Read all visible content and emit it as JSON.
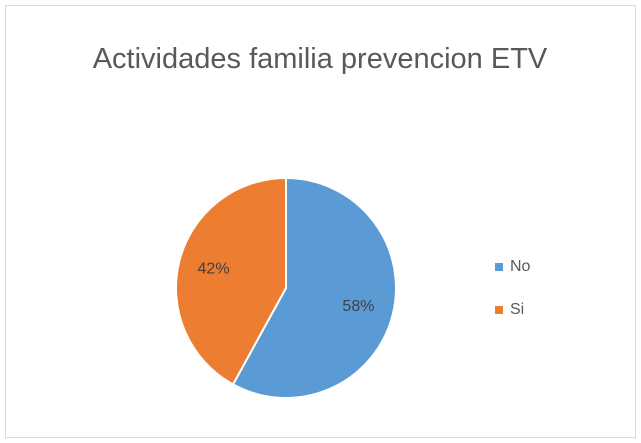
{
  "chart_data": {
    "type": "pie",
    "title": "Actividades familia prevencion ETV",
    "categories": [
      "No",
      "Si"
    ],
    "values": [
      58,
      42
    ],
    "value_labels": [
      "58%",
      "42%"
    ],
    "colors": [
      "#5b9bd5",
      "#ed7d31"
    ],
    "legend": "right"
  }
}
